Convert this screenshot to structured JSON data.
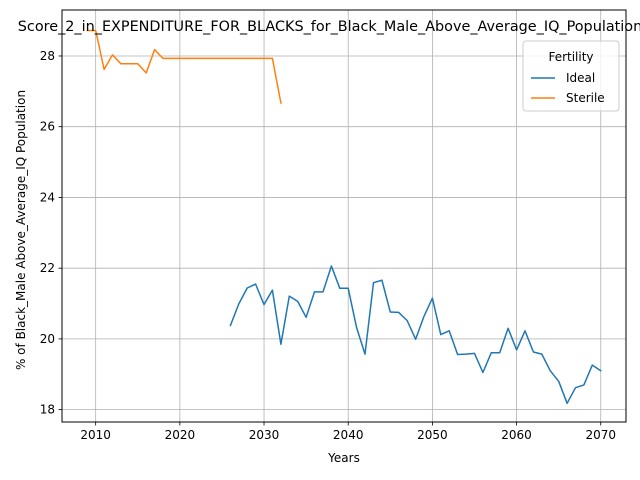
{
  "chart_data": {
    "type": "line",
    "title": "Score_2_in_EXPENDITURE_FOR_BLACKS_for_Black_Male_Above_Average_IQ_Population",
    "xlabel": "Years",
    "ylabel": "% of Black_Male Above_Average_IQ Population",
    "xlim": [
      2006,
      2073
    ],
    "ylim": [
      17.65,
      29.3
    ],
    "xticks": [
      2010,
      2020,
      2030,
      2040,
      2050,
      2060,
      2070
    ],
    "yticks": [
      18,
      20,
      22,
      24,
      26,
      28
    ],
    "grid": true,
    "legend": {
      "title": "Fertility",
      "placement": "top-right"
    },
    "series": [
      {
        "name": "Ideal",
        "color": "#1f77b4",
        "x": [
          2026,
          2027,
          2028,
          2029,
          2030,
          2031,
          2032,
          2033,
          2034,
          2035,
          2036,
          2037,
          2038,
          2039,
          2040,
          2041,
          2042,
          2043,
          2044,
          2045,
          2046,
          2047,
          2048,
          2049,
          2050,
          2051,
          2052,
          2053,
          2054,
          2055,
          2056,
          2057,
          2058,
          2059,
          2060,
          2061,
          2062,
          2063,
          2064,
          2065,
          2066,
          2067,
          2068,
          2069,
          2070
        ],
        "values": [
          20.38,
          20.99,
          21.44,
          21.55,
          20.97,
          21.38,
          19.85,
          21.21,
          21.06,
          20.61,
          21.33,
          21.33,
          22.06,
          21.43,
          21.43,
          20.32,
          19.57,
          21.59,
          21.66,
          20.76,
          20.75,
          20.52,
          19.99,
          20.64,
          21.15,
          20.12,
          20.23,
          19.56,
          19.57,
          19.59,
          19.05,
          19.61,
          19.61,
          20.3,
          19.69,
          20.23,
          19.63,
          19.57,
          19.1,
          18.8,
          18.18,
          18.62,
          18.7,
          19.26,
          19.1
        ]
      },
      {
        "name": "Sterile",
        "color": "#ff7f0e",
        "x": [
          2009,
          2010,
          2011,
          2012,
          2013,
          2014,
          2015,
          2016,
          2017,
          2018,
          2019,
          2020,
          2021,
          2022,
          2023,
          2024,
          2025,
          2026,
          2027,
          2028,
          2029,
          2030,
          2031,
          2032
        ],
        "values": [
          28.72,
          28.72,
          27.62,
          28.03,
          27.78,
          27.78,
          27.78,
          27.52,
          28.18,
          27.93,
          27.93,
          27.93,
          27.93,
          27.93,
          27.93,
          27.93,
          27.93,
          27.93,
          27.93,
          27.93,
          27.93,
          27.93,
          27.93,
          26.67
        ]
      }
    ]
  }
}
